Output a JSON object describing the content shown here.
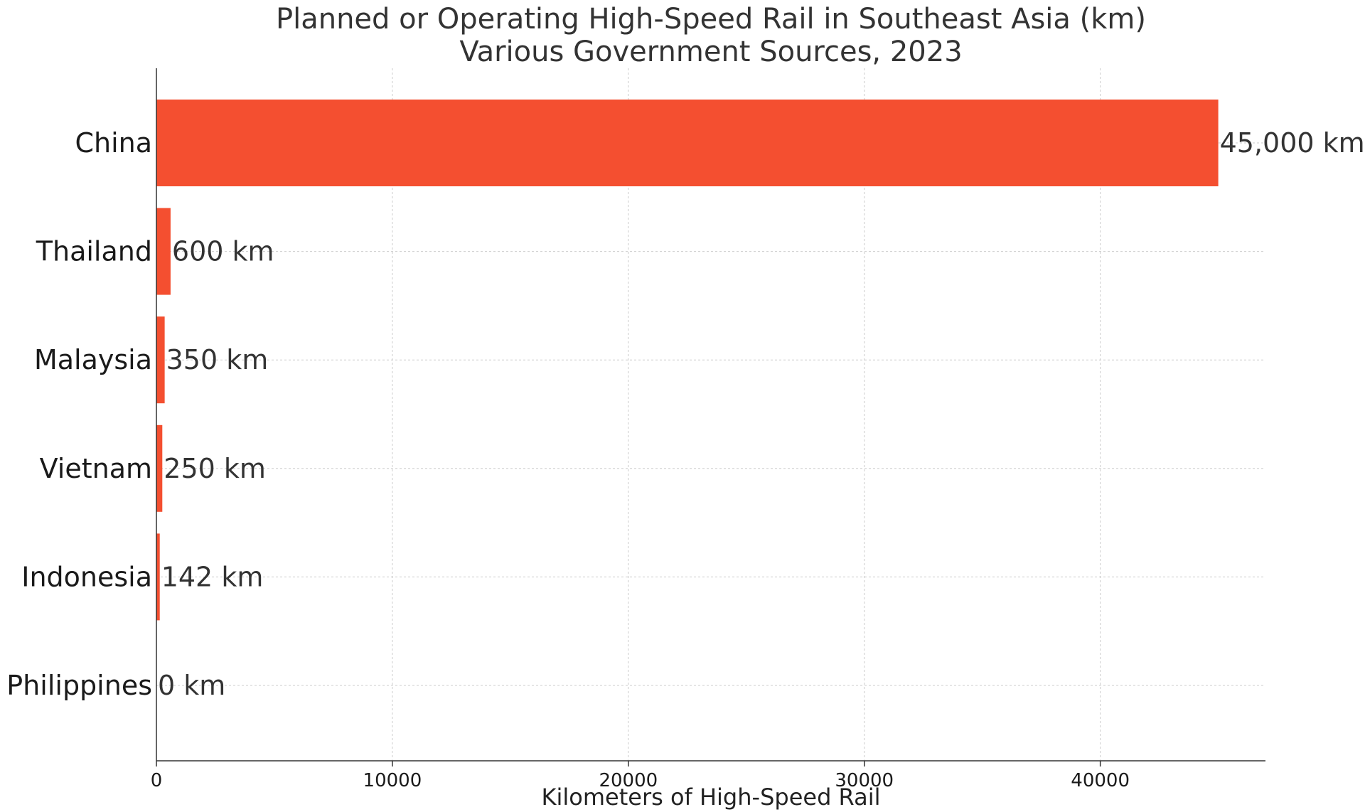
{
  "chart_data": {
    "type": "bar",
    "orientation": "horizontal",
    "title": "Planned or Operating High-Speed Rail in Southeast Asia (km)",
    "subtitle": "Various Government Sources, 2023",
    "xlabel": "Kilometers of High-Speed Rail",
    "ylabel": "",
    "categories": [
      "China",
      "Thailand",
      "Malaysia",
      "Vietnam",
      "Indonesia",
      "Philippines"
    ],
    "values": [
      45000,
      600,
      350,
      250,
      142,
      0
    ],
    "data_labels": [
      "45,000 km",
      "600 km",
      "350 km",
      "250 km",
      "142 km",
      "0 km"
    ],
    "xlim": [
      0,
      47000
    ],
    "xticks": [
      0,
      10000,
      20000,
      30000,
      40000
    ],
    "xtick_labels": [
      "0",
      "10000",
      "20000",
      "30000",
      "40000"
    ],
    "grid": true,
    "legend": "none",
    "colors": {
      "bar": "#f44f30",
      "text": "#333333",
      "grid": "#cccccc"
    }
  }
}
